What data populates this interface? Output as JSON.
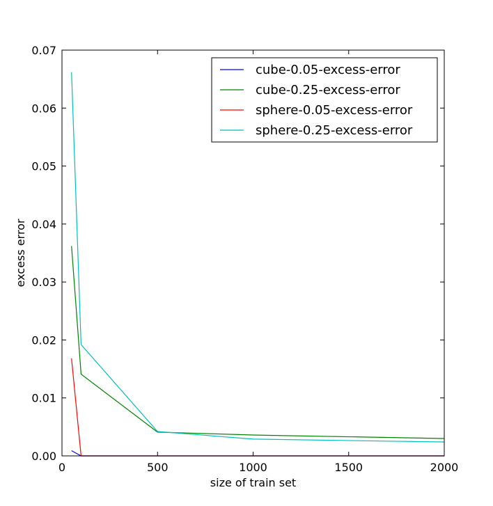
{
  "chart_data": {
    "type": "line",
    "title": "",
    "xlabel": "size of train set",
    "ylabel": "excess error",
    "xlim": [
      0,
      2000
    ],
    "ylim": [
      0,
      0.07
    ],
    "xticks": [
      0,
      500,
      1000,
      1500,
      2000
    ],
    "yticks": [
      0.0,
      0.01,
      0.02,
      0.03,
      0.04,
      0.05,
      0.06,
      0.07
    ],
    "xtick_labels": [
      "0",
      "500",
      "1000",
      "1500",
      "2000"
    ],
    "ytick_labels": [
      "0.00",
      "0.01",
      "0.02",
      "0.03",
      "0.04",
      "0.05",
      "0.06",
      "0.07"
    ],
    "grid": false,
    "legend_position": "top-right",
    "x": [
      50,
      100,
      500,
      1000,
      2000
    ],
    "series": [
      {
        "name": "cube-0.05-excess-error",
        "color": "#0000ff",
        "values": [
          0.0009,
          0.0,
          0.0,
          0.0,
          0.0
        ]
      },
      {
        "name": "cube-0.25-excess-error",
        "color": "#008000",
        "values": [
          0.0362,
          0.0141,
          0.0041,
          0.0036,
          0.003
        ]
      },
      {
        "name": "sphere-0.05-excess-error",
        "color": "#ff0000",
        "values": [
          0.0168,
          0.0,
          0.0,
          0.0,
          0.0
        ]
      },
      {
        "name": "sphere-0.25-excess-error",
        "color": "#00bfbf",
        "values": [
          0.0662,
          0.0192,
          0.0042,
          0.0029,
          0.0024
        ]
      }
    ]
  }
}
